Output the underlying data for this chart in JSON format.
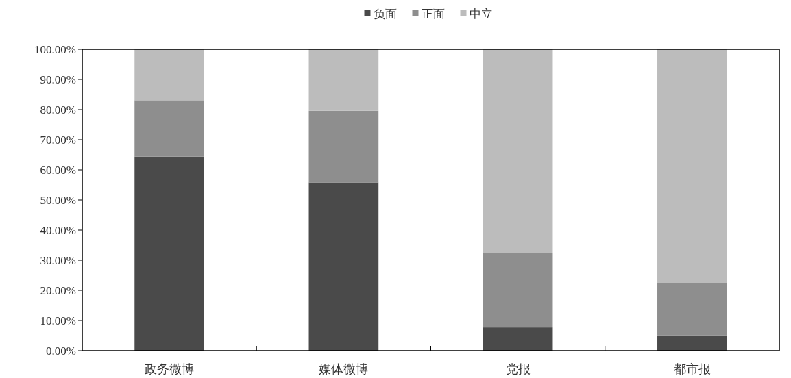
{
  "chart_data": {
    "type": "bar",
    "stacked": true,
    "categories": [
      "政务微博",
      "媒体微博",
      "党报",
      "都市报"
    ],
    "series": [
      {
        "name": "负面",
        "color": "#4a4a4a",
        "values": [
          64.4,
          55.8,
          7.7,
          5.1
        ]
      },
      {
        "name": "正面",
        "color": "#8e8e8e",
        "values": [
          18.7,
          23.8,
          24.8,
          17.2
        ]
      },
      {
        "name": "中立",
        "color": "#bcbcbc",
        "values": [
          16.9,
          20.4,
          67.5,
          77.7
        ]
      }
    ],
    "ylim": [
      0,
      100
    ],
    "yticks": [
      {
        "value": 0,
        "label": "0.00%"
      },
      {
        "value": 10,
        "label": "10.00%"
      },
      {
        "value": 20,
        "label": "20.00%"
      },
      {
        "value": 30,
        "label": "30.00%"
      },
      {
        "value": 40,
        "label": "40.00%"
      },
      {
        "value": 50,
        "label": "50.00%"
      },
      {
        "value": 60,
        "label": "60.00%"
      },
      {
        "value": 70,
        "label": "70.00%"
      },
      {
        "value": 80,
        "label": "80.00%"
      },
      {
        "value": 90,
        "label": "90.00%"
      },
      {
        "value": 100,
        "label": "100.00%"
      }
    ],
    "legend": "top"
  }
}
